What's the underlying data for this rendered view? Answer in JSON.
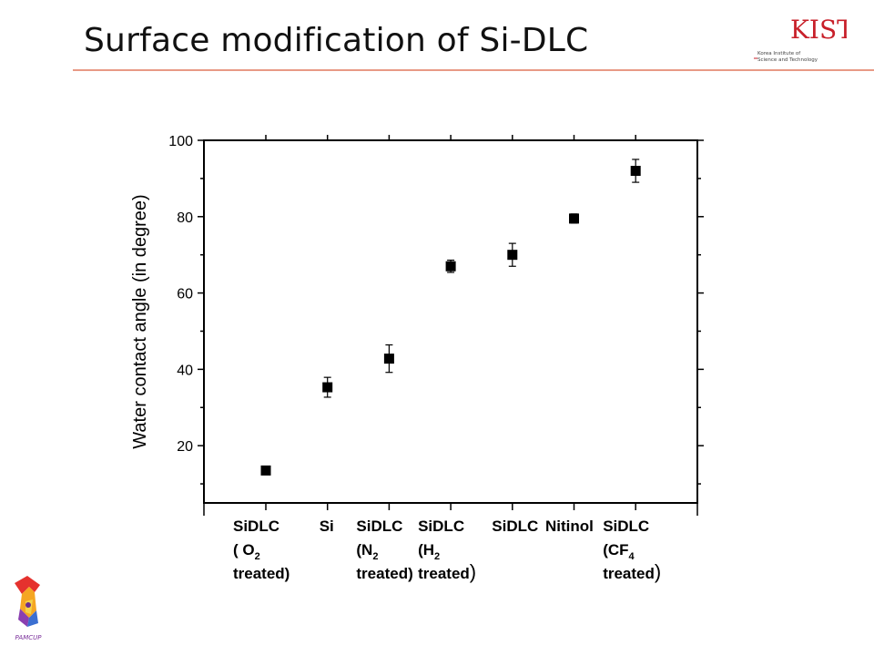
{
  "slide": {
    "title": "Surface modification of Si-DLC",
    "logo_text": "KIST",
    "logo_subtitle_line1": "Korea Institute of",
    "logo_subtitle_line2": "Science and Technology",
    "mascot_caption": "PAMCUP"
  },
  "colors": {
    "rule": "#e89a86",
    "logo_red": "#c8202a",
    "marker": "#000000"
  },
  "chart_data": {
    "type": "scatter",
    "ylabel": "Water contact angle (in degree)",
    "ylim": [
      5,
      100
    ],
    "yticks": [
      20,
      40,
      60,
      80,
      100
    ],
    "grid": false,
    "legend": "none",
    "categories": [
      {
        "lines": [
          {
            "text": "SiDLC"
          },
          {
            "text": "( O",
            "sub": "2"
          },
          {
            "text": "treated)"
          }
        ]
      },
      {
        "lines": [
          {
            "text": "Si"
          }
        ]
      },
      {
        "lines": [
          {
            "text": "SiDLC"
          },
          {
            "text": "(N",
            "sub": "2"
          },
          {
            "text": "treated)"
          }
        ]
      },
      {
        "lines": [
          {
            "text": "SiDLC"
          },
          {
            "text": "(H",
            "sub": "2"
          },
          {
            "text": "treated",
            "tail": ")"
          }
        ]
      },
      {
        "lines": [
          {
            "text": "SiDLC"
          }
        ]
      },
      {
        "lines": [
          {
            "text": "Nitinol"
          }
        ]
      },
      {
        "lines": [
          {
            "text": "SiDLC"
          },
          {
            "text": "(CF",
            "sub": "4"
          },
          {
            "text": "treated",
            "tail": ")"
          }
        ]
      }
    ],
    "values": [
      13.5,
      35.3,
      42.8,
      67.0,
      70.0,
      79.5,
      92.0
    ],
    "errors": [
      0,
      2.6,
      3.6,
      1.6,
      3.0,
      1.2,
      3.0
    ]
  }
}
